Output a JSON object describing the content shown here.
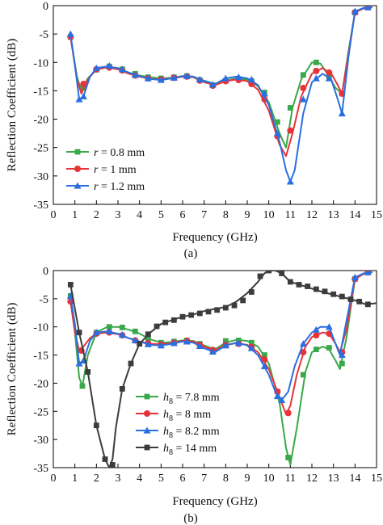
{
  "chart_data": [
    {
      "type": "line",
      "caption": "(a)",
      "xlabel": "Frequency (GHz)",
      "ylabel": "Reflection Coefficient (dB)",
      "xlim": [
        0,
        15
      ],
      "ylim": [
        -35,
        0
      ],
      "xticks": [
        0,
        1,
        2,
        3,
        4,
        5,
        6,
        7,
        8,
        9,
        10,
        11,
        12,
        13,
        14,
        15
      ],
      "yticks": [
        0,
        -5,
        -10,
        -15,
        -20,
        -25,
        -30,
        -35
      ],
      "grid": false,
      "legend_position": "lower-left",
      "series": [
        {
          "name_prefix": "r",
          "name_suffix": " = 0.8 mm",
          "color": "#3aa84a",
          "marker": "square",
          "x": [
            0.8,
            1.1,
            1.3,
            1.6,
            2.0,
            2.5,
            3.0,
            3.5,
            4.0,
            4.5,
            5.0,
            5.5,
            6.0,
            6.5,
            7.0,
            7.5,
            8.0,
            8.5,
            9.0,
            9.5,
            10.0,
            10.5,
            10.8,
            11.1,
            11.5,
            12.0,
            12.4,
            12.8,
            13.1,
            13.4,
            13.7,
            14.0,
            14.4,
            14.8
          ],
          "y": [
            -5.5,
            -12.5,
            -15.0,
            -12.8,
            -11.3,
            -10.8,
            -11.0,
            -11.8,
            -12.3,
            -12.6,
            -12.8,
            -12.7,
            -12.4,
            -12.5,
            -13.2,
            -13.8,
            -13.2,
            -12.8,
            -13.0,
            -14.2,
            -17.0,
            -22.5,
            -25.0,
            -18.0,
            -13.0,
            -10.0,
            -10.2,
            -12.5,
            -14.5,
            -15.5,
            -8.0,
            -1.2,
            -0.4,
            -0.3
          ],
          "markers_x": [
            0.8,
            1.4,
            2.0,
            2.6,
            3.2,
            3.8,
            4.4,
            5.0,
            5.6,
            6.2,
            6.8,
            7.4,
            8.0,
            8.6,
            9.2,
            9.8,
            10.4,
            11.0,
            11.6,
            12.2,
            12.8,
            13.4,
            14.0,
            14.6
          ],
          "markers_y": [
            -5.5,
            -14.5,
            -11.3,
            -10.7,
            -11.2,
            -12.0,
            -12.6,
            -12.8,
            -12.6,
            -12.4,
            -13.1,
            -14.0,
            -13.2,
            -12.9,
            -13.3,
            -15.3,
            -20.5,
            -18.0,
            -12.2,
            -10.0,
            -12.5,
            -15.5,
            -1.2,
            -0.3
          ]
        },
        {
          "name_prefix": "r",
          "name_suffix": " = 1 mm",
          "color": "#e8323a",
          "marker": "circle",
          "x": [
            0.8,
            1.1,
            1.3,
            1.6,
            2.0,
            2.5,
            3.0,
            3.5,
            4.0,
            4.5,
            5.0,
            5.5,
            6.0,
            6.5,
            7.0,
            7.5,
            8.0,
            8.5,
            9.0,
            9.5,
            10.0,
            10.5,
            10.8,
            11.1,
            11.5,
            12.0,
            12.5,
            12.9,
            13.2,
            13.4,
            13.7,
            14.0,
            14.4,
            14.8
          ],
          "y": [
            -5.5,
            -13.0,
            -15.5,
            -13.0,
            -11.2,
            -10.9,
            -11.2,
            -12.0,
            -12.5,
            -12.9,
            -13.0,
            -12.8,
            -12.5,
            -12.6,
            -13.5,
            -14.0,
            -13.3,
            -13.0,
            -13.3,
            -14.8,
            -18.5,
            -24.5,
            -26.5,
            -22.5,
            -16.0,
            -12.0,
            -11.0,
            -12.0,
            -14.0,
            -15.5,
            -8.5,
            -1.2,
            -0.5,
            -0.3
          ],
          "markers_x": [
            0.8,
            1.4,
            2.0,
            2.6,
            3.2,
            3.8,
            4.4,
            5.0,
            5.6,
            6.2,
            6.8,
            7.4,
            8.0,
            8.6,
            9.2,
            9.8,
            10.4,
            11.0,
            11.6,
            12.2,
            12.8,
            13.4,
            14.0,
            14.6
          ],
          "markers_y": [
            -5.5,
            -13.8,
            -11.2,
            -10.9,
            -11.4,
            -12.3,
            -12.8,
            -13.0,
            -12.7,
            -12.5,
            -13.2,
            -14.1,
            -13.3,
            -13.1,
            -13.8,
            -16.5,
            -23.0,
            -22.0,
            -14.5,
            -11.5,
            -11.8,
            -15.5,
            -1.2,
            -0.3
          ]
        },
        {
          "name_prefix": "r",
          "name_suffix": " = 1.2 mm",
          "color": "#2a6fe0",
          "marker": "triangle",
          "x": [
            0.8,
            1.0,
            1.2,
            1.4,
            1.7,
            2.0,
            2.5,
            3.0,
            3.5,
            4.0,
            4.5,
            5.0,
            5.5,
            6.0,
            6.5,
            7.0,
            7.5,
            8.0,
            8.5,
            9.0,
            9.5,
            10.0,
            10.5,
            10.8,
            11.0,
            11.2,
            11.6,
            12.0,
            12.5,
            12.9,
            13.2,
            13.4,
            13.7,
            14.0,
            14.4,
            14.8
          ],
          "y": [
            -5.0,
            -10.5,
            -16.5,
            -16.0,
            -12.5,
            -11.0,
            -10.7,
            -11.0,
            -11.8,
            -12.4,
            -12.9,
            -13.1,
            -12.8,
            -12.4,
            -12.5,
            -13.3,
            -13.8,
            -12.8,
            -12.5,
            -12.8,
            -14.0,
            -17.5,
            -24.0,
            -29.0,
            -31.0,
            -29.0,
            -19.0,
            -13.5,
            -12.0,
            -13.0,
            -16.5,
            -19.0,
            -9.0,
            -1.0,
            -0.4,
            -0.3
          ],
          "markers_x": [
            0.8,
            1.2,
            1.4,
            2.0,
            2.6,
            3.2,
            3.8,
            4.4,
            5.0,
            5.6,
            6.2,
            6.8,
            7.4,
            8.0,
            8.6,
            9.2,
            9.8,
            10.4,
            11.0,
            11.6,
            12.2,
            12.8,
            13.4,
            14.0,
            14.6
          ],
          "markers_y": [
            -5.0,
            -16.5,
            -16.0,
            -11.0,
            -10.6,
            -11.2,
            -12.2,
            -12.8,
            -13.1,
            -12.7,
            -12.4,
            -13.0,
            -13.9,
            -12.8,
            -12.6,
            -13.0,
            -15.5,
            -22.5,
            -31.0,
            -16.5,
            -12.8,
            -12.8,
            -19.0,
            -1.0,
            -0.3
          ]
        }
      ]
    },
    {
      "type": "line",
      "caption": "(b)",
      "xlabel": "Frequency (GHz)",
      "ylabel": "Reflection Coefficient (dB)",
      "xlim": [
        0,
        15
      ],
      "ylim": [
        -35,
        0
      ],
      "xticks": [
        0,
        1,
        2,
        3,
        4,
        5,
        6,
        7,
        8,
        9,
        10,
        11,
        12,
        13,
        14,
        15
      ],
      "yticks": [
        0,
        -5,
        -10,
        -15,
        -20,
        -25,
        -30,
        -35
      ],
      "grid": false,
      "legend_position": "lower-center",
      "series": [
        {
          "name_prefix": "h",
          "name_sub": "8",
          "name_suffix": " = 7.8 mm",
          "color": "#3aa84a",
          "marker": "square",
          "x": [
            0.8,
            1.0,
            1.2,
            1.35,
            1.6,
            2.0,
            2.5,
            3.0,
            3.5,
            4.0,
            4.5,
            5.0,
            5.5,
            6.0,
            6.5,
            7.0,
            7.5,
            8.0,
            8.5,
            9.0,
            9.5,
            10.0,
            10.5,
            10.8,
            11.0,
            11.3,
            11.7,
            12.0,
            12.5,
            12.8,
            13.1,
            13.3,
            13.6,
            14.0,
            14.4,
            14.8
          ],
          "y": [
            -4.5,
            -11.0,
            -19.0,
            -20.5,
            -15.0,
            -11.0,
            -10.0,
            -10.0,
            -10.5,
            -11.2,
            -12.2,
            -12.8,
            -12.7,
            -12.4,
            -12.5,
            -13.3,
            -14.0,
            -12.8,
            -12.3,
            -12.5,
            -13.5,
            -16.5,
            -23.5,
            -31.5,
            -34.5,
            -28.0,
            -18.0,
            -14.5,
            -13.5,
            -14.0,
            -16.0,
            -17.5,
            -12.0,
            -1.5,
            -0.5,
            -0.3
          ],
          "markers_x": [
            0.8,
            1.35,
            2.0,
            2.6,
            3.2,
            3.8,
            4.4,
            5.0,
            5.6,
            6.2,
            6.8,
            7.4,
            8.0,
            8.6,
            9.2,
            9.8,
            10.4,
            10.9,
            11.6,
            12.2,
            12.8,
            13.4,
            14.0,
            14.6
          ],
          "markers_y": [
            -4.5,
            -20.5,
            -11.0,
            -10.0,
            -10.1,
            -10.8,
            -12.0,
            -12.8,
            -12.6,
            -12.4,
            -13.0,
            -14.1,
            -12.5,
            -12.4,
            -12.8,
            -15.0,
            -21.5,
            -33.2,
            -18.5,
            -14.0,
            -13.7,
            -16.5,
            -1.5,
            -0.3
          ]
        },
        {
          "name_prefix": "h",
          "name_sub": "8",
          "name_suffix": " = 8 mm",
          "color": "#e8323a",
          "marker": "circle",
          "x": [
            0.8,
            1.0,
            1.2,
            1.4,
            1.7,
            2.0,
            2.5,
            3.0,
            3.5,
            4.0,
            4.5,
            5.0,
            5.5,
            6.0,
            6.5,
            7.0,
            7.5,
            8.0,
            8.5,
            9.0,
            9.5,
            10.0,
            10.5,
            10.8,
            11.0,
            11.3,
            11.7,
            12.0,
            12.5,
            12.8,
            13.1,
            13.3,
            13.6,
            14.0,
            14.4,
            14.8
          ],
          "y": [
            -5.5,
            -11.0,
            -14.2,
            -13.5,
            -12.0,
            -11.2,
            -11.0,
            -11.3,
            -12.0,
            -12.6,
            -13.0,
            -13.1,
            -12.9,
            -12.5,
            -12.6,
            -13.5,
            -14.2,
            -13.2,
            -12.9,
            -13.2,
            -14.5,
            -17.5,
            -22.5,
            -25.5,
            -24.0,
            -18.5,
            -13.5,
            -11.8,
            -11.0,
            -11.2,
            -13.0,
            -14.5,
            -10.5,
            -1.5,
            -0.6,
            -0.3
          ],
          "markers_x": [
            0.8,
            1.3,
            2.0,
            2.6,
            3.2,
            3.8,
            4.4,
            5.0,
            5.6,
            6.2,
            6.8,
            7.4,
            8.0,
            8.6,
            9.2,
            9.8,
            10.4,
            10.9,
            11.6,
            12.2,
            12.8,
            13.4,
            14.0,
            14.6
          ],
          "markers_y": [
            -5.5,
            -14.2,
            -11.2,
            -11.0,
            -11.5,
            -12.4,
            -12.9,
            -13.1,
            -12.8,
            -12.5,
            -13.2,
            -14.1,
            -13.2,
            -13.0,
            -13.6,
            -15.8,
            -21.5,
            -25.3,
            -14.5,
            -11.5,
            -11.2,
            -14.5,
            -1.5,
            -0.3
          ]
        },
        {
          "name_prefix": "h",
          "name_sub": "8",
          "name_suffix": " = 8.2 mm",
          "color": "#2a6fe0",
          "marker": "triangle",
          "x": [
            0.8,
            1.0,
            1.2,
            1.4,
            1.7,
            2.0,
            2.5,
            3.0,
            3.5,
            4.0,
            4.5,
            5.0,
            5.5,
            6.0,
            6.5,
            7.0,
            7.5,
            8.0,
            8.5,
            9.0,
            9.5,
            10.0,
            10.3,
            10.6,
            10.9,
            11.2,
            11.6,
            12.0,
            12.4,
            12.8,
            13.1,
            13.3,
            13.6,
            14.0,
            14.4,
            14.8
          ],
          "y": [
            -4.5,
            -9.5,
            -16.5,
            -16.0,
            -12.5,
            -11.0,
            -10.8,
            -11.2,
            -12.0,
            -12.6,
            -13.2,
            -13.3,
            -13.0,
            -12.6,
            -12.8,
            -13.8,
            -14.5,
            -13.3,
            -12.8,
            -13.3,
            -15.0,
            -18.5,
            -21.5,
            -23.0,
            -21.5,
            -17.0,
            -13.0,
            -11.0,
            -10.0,
            -10.0,
            -13.0,
            -15.0,
            -9.0,
            -1.2,
            -0.5,
            -0.3
          ],
          "markers_x": [
            0.8,
            1.2,
            1.4,
            2.0,
            2.6,
            3.2,
            3.8,
            4.4,
            5.0,
            5.6,
            6.2,
            6.8,
            7.4,
            8.0,
            8.6,
            9.2,
            9.8,
            10.4,
            10.6,
            11.6,
            12.2,
            12.8,
            13.4,
            14.0,
            14.6
          ],
          "markers_y": [
            -4.5,
            -16.5,
            -16.0,
            -11.0,
            -10.8,
            -11.4,
            -12.4,
            -13.1,
            -13.3,
            -12.9,
            -12.6,
            -13.4,
            -14.4,
            -13.3,
            -12.9,
            -13.8,
            -17.0,
            -22.3,
            -23.0,
            -13.0,
            -10.5,
            -10.0,
            -15.0,
            -1.2,
            -0.3
          ]
        },
        {
          "name_prefix": "h",
          "name_sub": "8",
          "name_suffix": " = 14 mm",
          "color": "#3c3c3c",
          "marker": "square",
          "x": [
            0.8,
            1.2,
            1.6,
            2.0,
            2.4,
            2.6,
            2.75,
            2.9,
            3.2,
            3.6,
            4.0,
            4.5,
            5.0,
            5.5,
            6.0,
            6.5,
            7.0,
            7.5,
            8.0,
            8.5,
            9.0,
            9.5,
            9.8,
            10.0,
            10.3,
            10.6,
            11.0,
            11.5,
            12.0,
            12.5,
            13.0,
            13.5,
            14.0,
            14.5,
            15.0
          ],
          "y": [
            -2.5,
            -11.0,
            -18.0,
            -27.5,
            -33.5,
            -35.0,
            -33.5,
            -28.0,
            -21.0,
            -16.5,
            -13.0,
            -11.0,
            -9.5,
            -8.8,
            -8.2,
            -7.8,
            -7.2,
            -6.8,
            -6.5,
            -5.5,
            -4.0,
            -2.0,
            -0.5,
            0.0,
            0.0,
            -0.5,
            -2.0,
            -2.6,
            -3.2,
            -3.8,
            -4.3,
            -4.8,
            -5.3,
            -6.0,
            -5.8
          ],
          "markers_x": [
            0.8,
            1.2,
            1.6,
            2.0,
            2.4,
            2.75,
            3.2,
            3.6,
            4.0,
            4.4,
            4.8,
            5.2,
            5.6,
            6.0,
            6.4,
            6.8,
            7.2,
            7.6,
            8.0,
            8.4,
            8.8,
            9.2,
            9.6,
            10.0,
            10.6,
            11.0,
            11.4,
            11.8,
            12.2,
            12.6,
            13.0,
            13.4,
            13.8,
            14.2,
            14.6
          ],
          "markers_y": [
            -2.5,
            -11.0,
            -18.0,
            -27.5,
            -33.5,
            -34.5,
            -21.0,
            -16.5,
            -13.0,
            -11.3,
            -9.9,
            -9.2,
            -8.8,
            -8.2,
            -7.9,
            -7.6,
            -7.3,
            -7.0,
            -6.6,
            -6.2,
            -5.3,
            -3.8,
            -1.0,
            0.0,
            -0.5,
            -2.0,
            -2.5,
            -2.8,
            -3.3,
            -3.7,
            -4.2,
            -4.6,
            -5.1,
            -5.5,
            -6.0
          ]
        }
      ]
    }
  ]
}
